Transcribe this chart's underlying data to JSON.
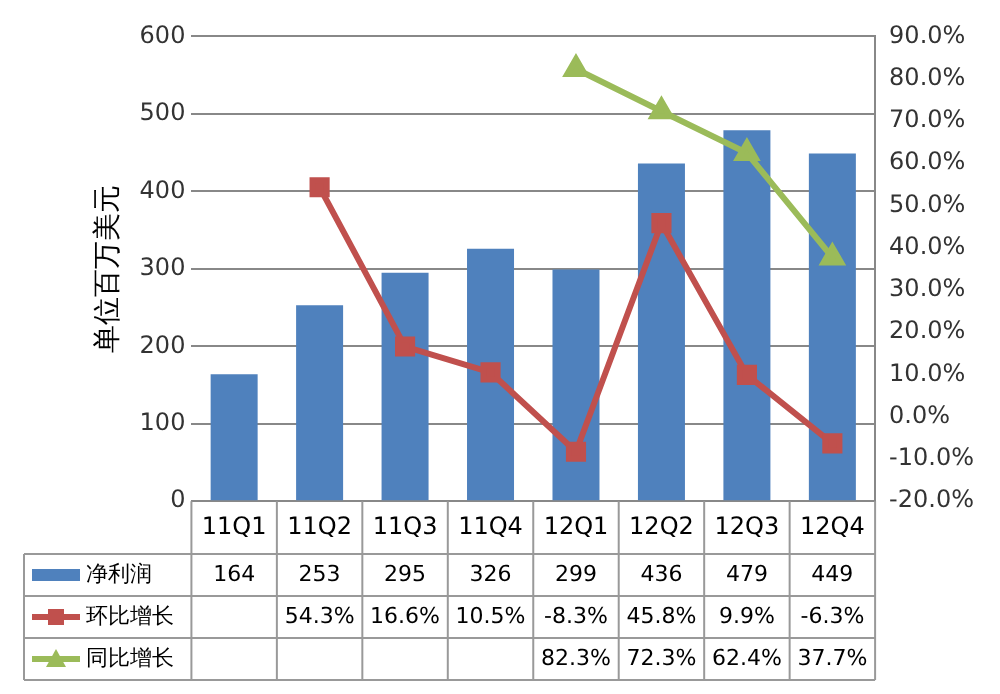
{
  "chart_data": {
    "type": "bar",
    "ylabel": "单位百万美元",
    "categories": [
      "11Q1",
      "11Q2",
      "11Q3",
      "11Q4",
      "12Q1",
      "12Q2",
      "12Q3",
      "12Q4"
    ],
    "series": [
      {
        "name": "净利润",
        "color": "#4f81bd",
        "values": [
          164,
          253,
          295,
          326,
          299,
          436,
          479,
          449
        ],
        "value_labels": [
          "164",
          "253",
          "295",
          "326",
          "299",
          "436",
          "479",
          "449"
        ]
      },
      {
        "name": "环比增长",
        "type": "line",
        "axis": "y2",
        "marker": "square",
        "color": "#c0504d",
        "values": [
          null,
          54.3,
          16.6,
          10.5,
          -8.3,
          45.8,
          9.9,
          -6.3
        ],
        "value_labels": [
          null,
          "54.3%",
          "16.6%",
          "10.5%",
          "-8.3%",
          "45.8%",
          "9.9%",
          "-6.3%"
        ]
      },
      {
        "name": "同比增长",
        "type": "line",
        "axis": "y2",
        "marker": "triangle",
        "color": "#9bbb59",
        "values": [
          null,
          null,
          null,
          null,
          82.3,
          72.3,
          62.4,
          37.7
        ],
        "value_labels": [
          null,
          null,
          null,
          null,
          "82.3%",
          "72.3%",
          "62.4%",
          "37.7%"
        ]
      }
    ],
    "ylim": [
      0,
      600
    ],
    "yticks": [
      0,
      100,
      200,
      300,
      400,
      500,
      600
    ],
    "y2lim": [
      -20,
      90
    ],
    "y2ticks": [
      {
        "value": -20,
        "label": "-20.0%"
      },
      {
        "value": -10,
        "label": "-10.0%"
      },
      {
        "value": 0,
        "label": "0.0%"
      },
      {
        "value": 10,
        "label": "10.0%"
      },
      {
        "value": 20,
        "label": "20.0%"
      },
      {
        "value": 30,
        "label": "30.0%"
      },
      {
        "value": 40,
        "label": "40.0%"
      },
      {
        "value": 50,
        "label": "50.0%"
      },
      {
        "value": 60,
        "label": "60.0%"
      },
      {
        "value": 70,
        "label": "70.0%"
      },
      {
        "value": 80,
        "label": "80.0%"
      },
      {
        "value": 90,
        "label": "90.0%"
      }
    ],
    "grid": "y",
    "legend": "bottom"
  }
}
